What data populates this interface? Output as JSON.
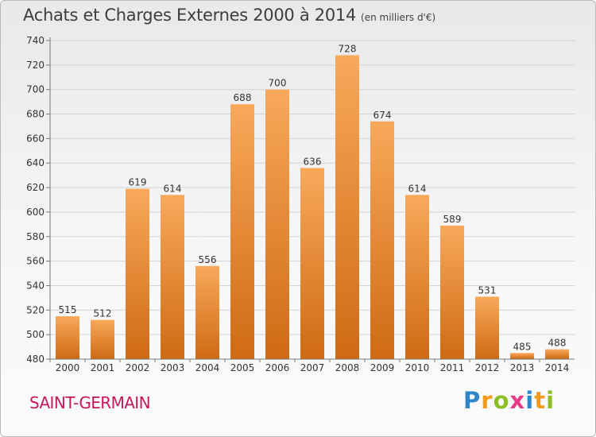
{
  "header": {
    "title": "Achats et Charges Externes 2000 à 2014",
    "subtitle": "(en milliers d'€)"
  },
  "footer": {
    "commune": "SAINT-GERMAIN",
    "logo_letters": [
      {
        "char": "P",
        "color": "#2e86c8"
      },
      {
        "char": "r",
        "color": "#f29a1f"
      },
      {
        "char": "o",
        "color": "#8cbf26"
      },
      {
        "char": "x",
        "color": "#e63a8a"
      },
      {
        "char": "i",
        "color": "#2e86c8"
      },
      {
        "char": "t",
        "color": "#f29a1f"
      },
      {
        "char": "i",
        "color": "#8cbf26"
      }
    ]
  },
  "chart_data": {
    "type": "bar",
    "title": "Achats et Charges Externes 2000 à 2014",
    "subtitle": "(en milliers d'€)",
    "categories": [
      "2000",
      "2001",
      "2002",
      "2003",
      "2004",
      "2005",
      "2006",
      "2007",
      "2008",
      "2009",
      "2010",
      "2011",
      "2012",
      "2013",
      "2014"
    ],
    "values": [
      515,
      512,
      619,
      614,
      556,
      688,
      700,
      636,
      728,
      674,
      614,
      589,
      531,
      485,
      488
    ],
    "ylim": [
      480,
      740
    ],
    "yticks": [
      480,
      500,
      520,
      540,
      560,
      580,
      600,
      620,
      640,
      660,
      680,
      700,
      720,
      740
    ],
    "grid": true,
    "bar_color_top": "#f8a95a",
    "bar_color_bottom": "#cf6a14"
  }
}
